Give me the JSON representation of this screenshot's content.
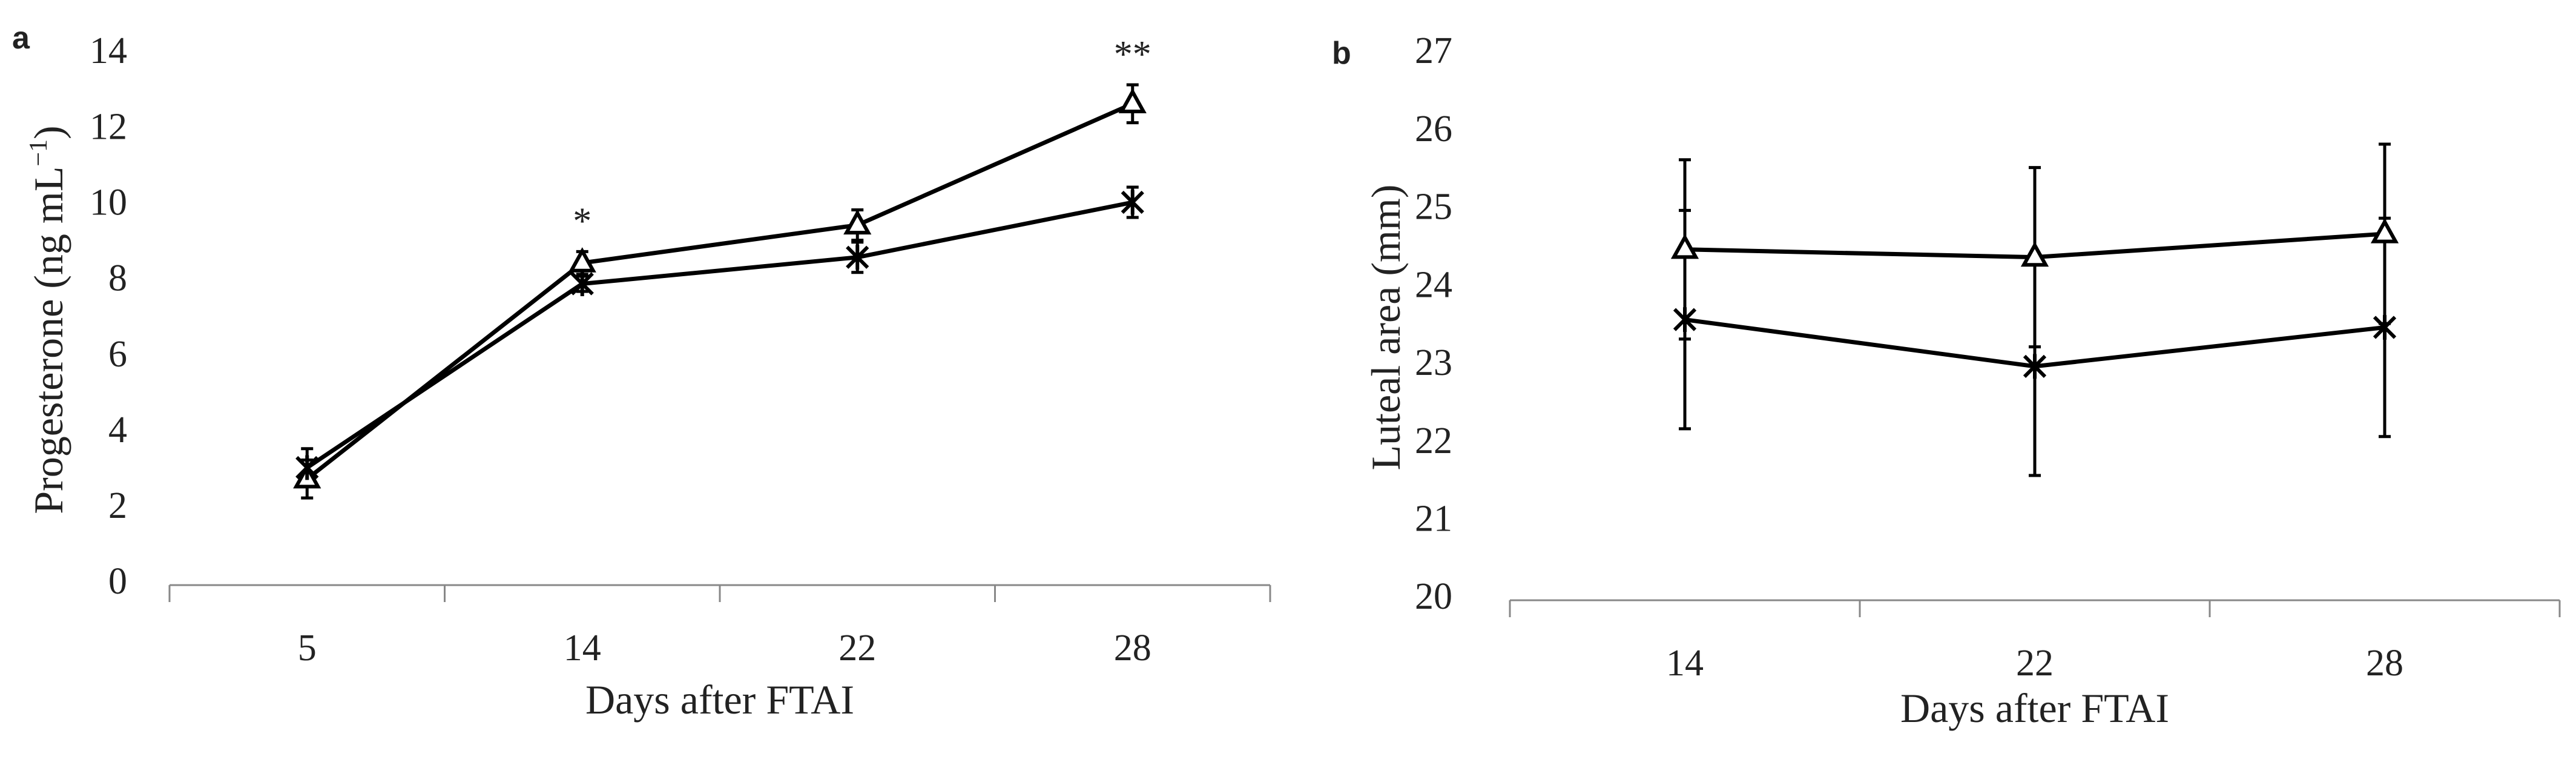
{
  "chart_data": [
    {
      "type": "line",
      "panel": "a",
      "ylabel": {
        "text": "Progesterone (ng mL",
        "superscript": "−1",
        "suffix": ")"
      },
      "xlabel": "Days after FTAI",
      "categories": [
        "5",
        "14",
        "22",
        "28"
      ],
      "annotations": [
        null,
        "*",
        null,
        "**"
      ],
      "ylim": [
        0,
        14
      ],
      "yticks": [
        0,
        2,
        4,
        6,
        8,
        10,
        12,
        14
      ],
      "series": [
        {
          "marker": "triangle",
          "color": "#000000",
          "values": [
            2.8,
            8.5,
            9.5,
            12.7
          ],
          "errors": [
            0.5,
            0.3,
            0.4,
            0.5
          ]
        },
        {
          "marker": "asterisk",
          "color": "#000000",
          "values": [
            3.1,
            7.95,
            8.65,
            10.1
          ],
          "errors": [
            0.5,
            0.2,
            0.4,
            0.4
          ]
        }
      ]
    },
    {
      "type": "line",
      "panel": "b",
      "ylabel": {
        "text": "Luteal area (mm)"
      },
      "xlabel": "Days after FTAI",
      "categories": [
        "14",
        "22",
        "28"
      ],
      "ylim": [
        20,
        27
      ],
      "yticks": [
        20,
        21,
        22,
        23,
        24,
        25,
        26,
        27
      ],
      "series": [
        {
          "marker": "triangle",
          "color": "#000000",
          "values": [
            24.5,
            24.4,
            24.7
          ],
          "errors": [
            1.15,
            1.15,
            1.15
          ]
        },
        {
          "marker": "asterisk",
          "color": "#000000",
          "values": [
            23.6,
            23.0,
            23.5
          ],
          "errors": [
            1.4,
            1.4,
            1.4
          ]
        }
      ]
    }
  ]
}
